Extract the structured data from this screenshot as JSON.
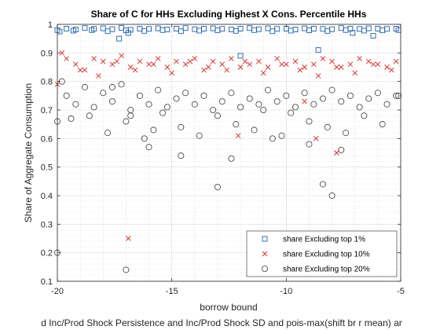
{
  "chart_data": {
    "type": "scatter",
    "title": "Share of C for HHs Excluding Highest X Cons. Percentile HHs",
    "xlabel": "borrow bound",
    "ylabel": "Share of Aggregate Consumption",
    "bottom_caption": "d Inc/Prod Shock Persistence and Inc/Prod Shock SD and pois-max(shift br r mean) ar",
    "xlim": [
      -20,
      -5
    ],
    "ylim": [
      0.1,
      1.0
    ],
    "xticks": [
      -20,
      -15,
      -10,
      -5
    ],
    "xtick_labels": [
      "-20",
      "-15",
      "-10",
      "-5"
    ],
    "yticks": [
      0.1,
      0.2,
      0.3,
      0.4,
      0.5,
      0.6,
      0.7,
      0.8,
      0.9,
      1.0
    ],
    "ytick_labels": [
      "0.1",
      "0.2",
      "0.3",
      "0.4",
      "0.5",
      "0.6",
      "0.7",
      "0.8",
      "0.9",
      "1"
    ],
    "grid": true,
    "minor_grid": true,
    "legend_position": "bottom-right",
    "series": [
      {
        "name": "share Excluding top 1%",
        "marker": "square",
        "color": "#1f5fb0",
        "x": [
          -20.0,
          -19.6,
          -19.2,
          -18.8,
          -18.4,
          -18.0,
          -17.6,
          -17.2,
          -16.8,
          -16.4,
          -16.0,
          -15.6,
          -15.2,
          -14.8,
          -14.4,
          -14.0,
          -13.6,
          -13.2,
          -12.8,
          -12.4,
          -12.0,
          -11.6,
          -11.2,
          -10.8,
          -10.4,
          -10.0,
          -9.6,
          -9.2,
          -8.8,
          -8.4,
          -8.0,
          -7.6,
          -7.2,
          -6.8,
          -6.4,
          -6.0,
          -5.6,
          -5.2,
          -19.9,
          -19.3,
          -18.5,
          -17.8,
          -17.0,
          -16.2,
          -15.4,
          -14.6,
          -13.8,
          -13.0,
          -12.2,
          -11.4,
          -10.6,
          -9.8,
          -9.0,
          -8.2,
          -7.4,
          -6.6,
          -5.8,
          -5.1,
          -12.0,
          -8.6,
          -7.1,
          -17.3,
          -16.9,
          -6.2
        ],
        "y": [
          0.98,
          0.985,
          0.982,
          0.987,
          0.984,
          0.986,
          0.983,
          0.988,
          0.981,
          0.985,
          0.984,
          0.986,
          0.982,
          0.985,
          0.987,
          0.983,
          0.985,
          0.986,
          0.984,
          0.982,
          0.985,
          0.987,
          0.983,
          0.986,
          0.984,
          0.985,
          0.982,
          0.986,
          0.985,
          0.984,
          0.983,
          0.987,
          0.985,
          0.984,
          0.986,
          0.985,
          0.984,
          0.985,
          0.975,
          0.978,
          0.98,
          0.976,
          0.979,
          0.977,
          0.98,
          0.976,
          0.978,
          0.979,
          0.977,
          0.98,
          0.976,
          0.978,
          0.979,
          0.977,
          0.98,
          0.978,
          0.979,
          0.98,
          0.89,
          0.91,
          0.97,
          0.95,
          0.97,
          0.96
        ]
      },
      {
        "name": "share Excluding top 10%",
        "marker": "x",
        "color": "#d62728",
        "x": [
          -20.0,
          -19.6,
          -19.2,
          -18.8,
          -18.4,
          -18.0,
          -17.6,
          -17.2,
          -16.8,
          -16.4,
          -16.0,
          -15.6,
          -15.2,
          -14.8,
          -14.4,
          -14.0,
          -13.6,
          -13.2,
          -12.8,
          -12.4,
          -12.0,
          -11.6,
          -11.2,
          -10.8,
          -10.4,
          -10.0,
          -9.6,
          -9.2,
          -8.8,
          -8.4,
          -8.0,
          -7.6,
          -7.2,
          -6.8,
          -6.4,
          -6.0,
          -5.6,
          -5.2,
          -19.8,
          -19.0,
          -18.2,
          -17.4,
          -16.6,
          -15.8,
          -15.0,
          -14.2,
          -13.4,
          -12.6,
          -11.8,
          -11.0,
          -10.2,
          -9.4,
          -8.6,
          -7.8,
          -7.0,
          -6.2,
          -5.4,
          -12.1,
          -8.7,
          -7.8,
          -16.9,
          -9.2
        ],
        "y": [
          0.79,
          0.88,
          0.86,
          0.84,
          0.88,
          0.87,
          0.86,
          0.89,
          0.85,
          0.87,
          0.86,
          0.88,
          0.85,
          0.87,
          0.86,
          0.88,
          0.84,
          0.87,
          0.86,
          0.88,
          0.85,
          0.86,
          0.87,
          0.85,
          0.88,
          0.86,
          0.87,
          0.85,
          0.86,
          0.88,
          0.87,
          0.85,
          0.86,
          0.88,
          0.87,
          0.86,
          0.85,
          0.87,
          0.9,
          0.84,
          0.82,
          0.87,
          0.84,
          0.86,
          0.83,
          0.87,
          0.85,
          0.84,
          0.87,
          0.83,
          0.86,
          0.84,
          0.82,
          0.85,
          0.83,
          0.86,
          0.84,
          0.61,
          0.6,
          0.55,
          0.25,
          0.73
        ]
      },
      {
        "name": "share Excluding top 20%",
        "marker": "circle",
        "color": "#3a3a3a",
        "x": [
          -20.0,
          -19.6,
          -19.2,
          -18.8,
          -18.4,
          -18.0,
          -17.6,
          -17.2,
          -16.8,
          -16.4,
          -16.0,
          -15.6,
          -15.2,
          -14.8,
          -14.4,
          -14.0,
          -13.6,
          -13.2,
          -12.8,
          -12.4,
          -12.0,
          -11.6,
          -11.2,
          -10.8,
          -10.4,
          -10.0,
          -9.6,
          -9.2,
          -8.8,
          -8.4,
          -8.0,
          -7.6,
          -7.2,
          -6.8,
          -6.4,
          -6.0,
          -5.6,
          -5.2,
          -19.8,
          -19.4,
          -18.6,
          -17.8,
          -17.0,
          -16.2,
          -15.4,
          -14.6,
          -13.8,
          -13.0,
          -12.2,
          -11.4,
          -10.6,
          -9.8,
          -9.0,
          -8.2,
          -7.4,
          -6.6,
          -5.8,
          -5.1,
          -20.0,
          -17.6,
          -17.0,
          -16.0,
          -14.6,
          -13.0,
          -12.4,
          -11.0,
          -10.2,
          -9.0,
          -8.4,
          -8.0,
          -7.6,
          -16.8,
          -15.8
        ],
        "y": [
          0.66,
          0.75,
          0.72,
          0.78,
          0.71,
          0.76,
          0.73,
          0.79,
          0.7,
          0.75,
          0.72,
          0.77,
          0.71,
          0.74,
          0.76,
          0.72,
          0.75,
          0.7,
          0.73,
          0.76,
          0.71,
          0.74,
          0.72,
          0.77,
          0.73,
          0.75,
          0.71,
          0.76,
          0.72,
          0.74,
          0.77,
          0.73,
          0.75,
          0.71,
          0.74,
          0.76,
          0.72,
          0.75,
          0.8,
          0.67,
          0.68,
          0.62,
          0.66,
          0.6,
          0.69,
          0.64,
          0.61,
          0.68,
          0.65,
          0.63,
          0.6,
          0.69,
          0.66,
          0.64,
          0.62,
          0.68,
          0.65,
          0.75,
          0.2,
          0.78,
          0.14,
          0.57,
          0.54,
          0.43,
          0.53,
          0.7,
          0.61,
          0.58,
          0.44,
          0.4,
          0.56,
          0.68,
          0.63
        ]
      }
    ]
  }
}
